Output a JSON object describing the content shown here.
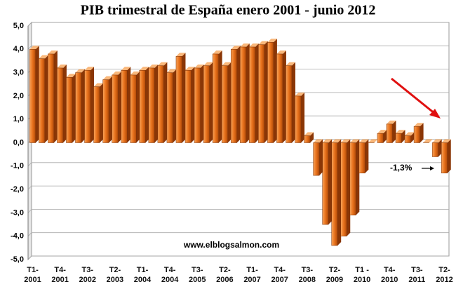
{
  "chart_data": {
    "type": "bar3d",
    "title": "PIB trimestral de España enero 2001 - junio 2012",
    "categories": [
      "T1-\n2001",
      null,
      null,
      "T4-\n2001",
      null,
      null,
      "T3-\n2002",
      null,
      null,
      "T2-\n2003",
      null,
      null,
      "T1-\n2004",
      null,
      null,
      "T4-\n2004",
      null,
      null,
      "T3-\n2005",
      null,
      null,
      "T2-\n2006",
      null,
      null,
      "T1-\n2007",
      null,
      null,
      "T4-\n2007",
      null,
      null,
      "T3-\n2008",
      null,
      null,
      "T2-\n2009",
      null,
      null,
      "T1 -\n2010",
      null,
      null,
      "T4-\n2010",
      null,
      null,
      "T3-\n2011",
      null,
      null,
      "T2-\n2012"
    ],
    "values": [
      4.0,
      3.6,
      3.8,
      3.2,
      2.8,
      3.0,
      3.1,
      2.4,
      2.7,
      2.9,
      3.1,
      2.9,
      3.1,
      3.2,
      3.3,
      3.0,
      3.7,
      3.1,
      3.2,
      3.3,
      3.8,
      3.3,
      4.0,
      4.1,
      4.1,
      4.2,
      4.3,
      3.8,
      3.3,
      2.0,
      0.3,
      -1.4,
      -3.5,
      -4.4,
      -4.0,
      -3.1,
      -1.3,
      0.0,
      0.4,
      0.8,
      0.4,
      0.3,
      0.7,
      0.0,
      -0.6,
      -1.3
    ],
    "color": "#e8721c",
    "ylim": [
      -5,
      5
    ],
    "yticks": [
      {
        "value": -5,
        "label": "-5,0"
      },
      {
        "value": -4,
        "label": "-4,0"
      },
      {
        "value": -3,
        "label": "-3,0"
      },
      {
        "value": -2,
        "label": "-2,0"
      },
      {
        "value": -1,
        "label": "-1,0"
      },
      {
        "value": 0,
        "label": "0,0"
      },
      {
        "value": 1,
        "label": "1,0"
      },
      {
        "value": 2,
        "label": "2,0"
      },
      {
        "value": 3,
        "label": "3,0"
      },
      {
        "value": 4,
        "label": "4,0"
      },
      {
        "value": 5,
        "label": "5,0"
      }
    ],
    "grid": true,
    "annotations": [
      "-1,3%",
      "www.elblogsalmon.com"
    ]
  }
}
